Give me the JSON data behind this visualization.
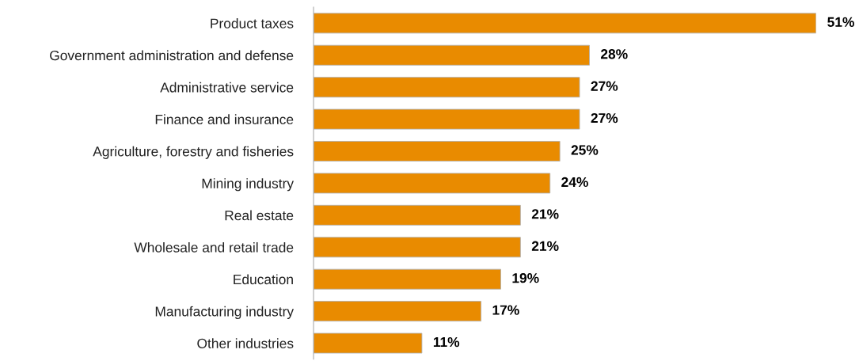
{
  "chart_data": {
    "type": "bar",
    "orientation": "horizontal",
    "categories": [
      "Product taxes",
      "Government administration and defense",
      "Administrative service",
      "Finance and insurance",
      "Agriculture, forestry and fisheries",
      "Mining industry",
      "Real estate",
      "Wholesale and retail trade",
      "Education",
      "Manufacturing industry",
      "Other industries"
    ],
    "values": [
      51,
      28,
      27,
      27,
      25,
      24,
      21,
      21,
      19,
      17,
      11
    ],
    "value_labels": [
      "51%",
      "28%",
      "27%",
      "27%",
      "25%",
      "24%",
      "21%",
      "21%",
      "19%",
      "17%",
      "11%"
    ],
    "color": "#e98b00",
    "grid": false,
    "legend": false
  }
}
